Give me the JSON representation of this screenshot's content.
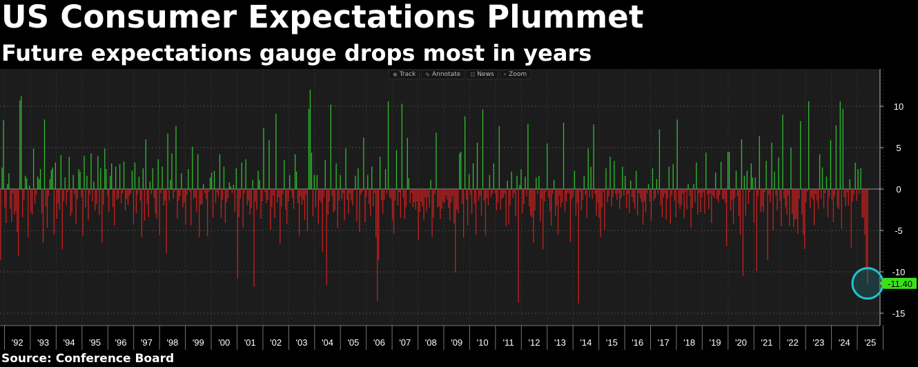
{
  "title": "US Consumer Expectations Plummet",
  "subtitle": "Future expectations gauge drops most in years",
  "source": "Source: Conference Board",
  "toolbar": {
    "items": [
      {
        "label": "Track",
        "icon": "crosshair-icon"
      },
      {
        "label": "Annotate",
        "icon": "pencil-icon"
      },
      {
        "label": "News",
        "icon": "news-icon"
      },
      {
        "label": "Zoom",
        "icon": "zoom-icon"
      }
    ]
  },
  "colors": {
    "positive": "#2fbf2f",
    "negative": "#cc1f1f",
    "background": "#1c1c1c",
    "highlight_circle": "#22c3cf",
    "last_value_label": "#39e21a"
  },
  "chart_data": {
    "type": "bar",
    "title": "US Consumer Expectations Plummet",
    "subtitle": "Future expectations gauge drops most in years",
    "xlabel": "",
    "ylabel": "",
    "ylim": [
      -16.5,
      14.5
    ],
    "yticks": [
      10,
      5,
      0,
      -5,
      -10,
      -15
    ],
    "x_tick_labels": [
      "'92",
      "'93",
      "'94",
      "'95",
      "'96",
      "'97",
      "'98",
      "'99",
      "'00",
      "'01",
      "'02",
      "'03",
      "'04",
      "'05",
      "'06",
      "'07",
      "'08",
      "'09",
      "'10",
      "'11",
      "'12",
      "'13",
      "'14",
      "'15",
      "'16",
      "'17",
      "'18",
      "'19",
      "'20",
      "'21",
      "'22",
      "'23",
      "'24",
      "'25"
    ],
    "x_start_year": 1991.8,
    "x_end_year": 2025.4,
    "grid": true,
    "last_value": -11.4,
    "last_value_label": "-11.40",
    "series": [
      {
        "name": "",
        "frequency": "monthly",
        "values": [
          -8.6,
          2.6,
          8.3,
          -2.2,
          -4.1,
          0.6,
          1.9,
          -2.4,
          -4.0,
          -0.5,
          -3.1,
          -2.7,
          -5.2,
          -8.1,
          10.7,
          11.2,
          -3.4,
          -1.3,
          1.6,
          1.3,
          -5.8,
          0.4,
          -2.8,
          -3.1,
          4.9,
          -1.8,
          -0.7,
          1.5,
          1.2,
          2.4,
          -2.9,
          -6.5,
          8.4,
          -2.1,
          -4.7,
          -0.9,
          1.2,
          2.3,
          2.6,
          -5.5,
          3.2,
          -3.6,
          -1.7,
          -2.5,
          4.1,
          -7.3,
          -1.5,
          1.4,
          -1.9,
          -0.4,
          3.9,
          -3.3,
          -2.8,
          1.7,
          -0.6,
          -4.2,
          -1.2,
          2.4,
          2.1,
          -1.0,
          -5.6,
          4.0,
          -2.2,
          1.6,
          -3.8,
          -0.7,
          4.3,
          -1.5,
          0.9,
          -2.6,
          -1.8,
          4.0,
          -3.1,
          2.5,
          -6.5,
          -1.9,
          4.9,
          2.4,
          -0.8,
          -2.7,
          1.6,
          3.1,
          -2.2,
          -4.4,
          2.7,
          -1.3,
          -1.1,
          3.0,
          -1.7,
          -0.5,
          3.3,
          -2.6,
          -1.2,
          -1.9,
          -0.8,
          -0.5,
          2.2,
          -4.2,
          3.2,
          -2.9,
          -0.6,
          1.5,
          -1.4,
          -5.8,
          2.5,
          -3.8,
          6.0,
          -1.8,
          -3.4,
          0.9,
          -0.6,
          2.5,
          -1.1,
          -2.9,
          -3.6,
          3.6,
          -5.6,
          -0.5,
          2.7,
          -2.0,
          -1.4,
          -7.8,
          6.7,
          -1.4,
          1.1,
          4.3,
          -1.2,
          -0.3,
          7.6,
          -3.6,
          -1.4,
          -0.9,
          1.9,
          -2.2,
          -1.6,
          -4.3,
          -0.7,
          2.4,
          -0.3,
          -4.4,
          5.1,
          -1.2,
          -1.0,
          -2.8,
          4.2,
          -5.8,
          -1.9,
          -1.8,
          0.6,
          -0.5,
          -1.2,
          -5.7,
          -0.3,
          1.4,
          2.0,
          -3.4,
          2.2,
          -1.7,
          -0.4,
          -0.9,
          4.2,
          -3.5,
          -1.3,
          2.7,
          -4.1,
          -1.6,
          -1.1,
          0.8,
          0.3,
          -0.5,
          0.5,
          -2.7,
          2.5,
          -10.8,
          -3.4,
          -1.2,
          3.2,
          -4.7,
          -0.5,
          3.6,
          -1.9,
          -1.4,
          -3.1,
          -2.3,
          1.1,
          -11.8,
          -1.5,
          -2.5,
          2.2,
          1.1,
          -3.6,
          -1.5,
          7.4,
          -0.4,
          -1.7,
          -1.3,
          5.9,
          -4.9,
          -2.2,
          -0.8,
          -3.5,
          9.1,
          -1.6,
          -1.0,
          -6.6,
          -2.1,
          -0.6,
          3.5,
          -2.5,
          -4.2,
          -1.5,
          1.7,
          -0.3,
          -1.1,
          -2.4,
          4.2,
          2.1,
          -1.7,
          -5.6,
          -0.9,
          -1.9,
          -1.3,
          -3.7,
          -0.7,
          -5.1,
          9.7,
          12.0,
          4.4,
          -3.3,
          1.7,
          -2.2,
          1.7,
          -4.2,
          -1.3,
          -1.7,
          -7.6,
          -1.0,
          3.5,
          -11.6,
          -3.1,
          -1.5,
          10.2,
          -0.8,
          -2.8,
          -2.6,
          3.1,
          -4.7,
          -1.4,
          1.7,
          -1.2,
          -0.5,
          -3.8,
          4.9,
          -1.3,
          -3.0,
          -0.5,
          -1.4,
          -2.0,
          -0.2,
          1.6,
          -3.9,
          2.5,
          -5.2,
          -0.7,
          -0.3,
          6.2,
          -4.0,
          -0.9,
          1.7,
          -1.8,
          -3.3,
          2.7,
          -2.1,
          -0.5,
          -5.8,
          -13.5,
          -8.6,
          3.9,
          -1.3,
          -3.0,
          -1.3,
          2.4,
          -0.6,
          10.6,
          -1.0,
          -1.2,
          -3.7,
          -5.4,
          -1.4,
          4.7,
          -2.0,
          -0.4,
          -3.5,
          10.3,
          -1.1,
          -3.6,
          -2.2,
          6.2,
          1.3,
          -1.7,
          -0.5,
          -2.2,
          -1.6,
          -2.5,
          -1.5,
          -6.1,
          -2.8,
          -1.5,
          -2.1,
          -3.7,
          -1.0,
          -2.7,
          -1.0,
          -2.2,
          1.1,
          -5.8,
          -3.5,
          -0.6,
          6.8,
          -2.2,
          -2.1,
          -3.6,
          -2.4,
          -1.5,
          -1.7,
          -0.8,
          -1.3,
          -2.3,
          -3.8,
          -1.6,
          -0.9,
          -4.2,
          -10.1,
          -2.5,
          -2.9,
          4.3,
          4.5,
          -1.8,
          -5.9,
          8.8,
          -1.3,
          -4.4,
          1.8,
          -0.7,
          -3.0,
          3.1,
          -1.8,
          -5.5,
          5.6,
          -1.4,
          -0.8,
          -3.2,
          9.6,
          -1.4,
          -5.6,
          -1.1,
          -2.0,
          1.7,
          -1.0,
          -0.6,
          3.1,
          -0.5,
          -2.6,
          -1.6,
          7.6,
          -2.5,
          -1.2,
          -1.0,
          -0.6,
          -4.5,
          1.0,
          -4.3,
          -1.9,
          2.1,
          -1.1,
          -0.5,
          -3.3,
          1.6,
          -13.7,
          0.5,
          2.4,
          -2.9,
          -1.8,
          1.5,
          -0.9,
          7.9,
          -2.1,
          -3.2,
          -3.4,
          -6.5,
          -2.6,
          1.4,
          -0.6,
          1.6,
          -3.9,
          -1.2,
          -7.3,
          -1.5,
          -0.4,
          5.5,
          -1.0,
          -2.7,
          -4.4,
          -0.6,
          1.1,
          -3.2,
          -2.0,
          -5.5,
          -0.8,
          -2.2,
          -1.6,
          8.0,
          -2.7,
          -1.5,
          -0.5,
          -0.5,
          -6.4,
          -1.3,
          -0.9,
          2.2,
          -3.2,
          -1.7,
          -13.8,
          -0.3,
          -2.6,
          -1.3,
          1.6,
          -0.7,
          -3.5,
          4.9,
          -1.0,
          2.7,
          -1.2,
          7.8,
          -0.6,
          -3.2,
          -1.7,
          -3.5,
          -5.8,
          -2.2,
          -0.3,
          -4.9,
          2.5,
          -1.6,
          -0.9,
          3.9,
          -2.1,
          -1.0,
          3.4,
          -0.6,
          -1.3,
          -0.5,
          -2.4,
          -1.1,
          2.7,
          -0.8,
          1.6,
          -2.3,
          -0.6,
          -2.9,
          1.0,
          -1.0,
          -1.6,
          -2.4,
          2.2,
          -3.2,
          -0.5,
          -1.1,
          -1.6,
          -4.3,
          -1.5,
          -2.8,
          -0.5,
          0.6,
          -1.5,
          -3.8,
          2.5,
          -1.4,
          -1.1,
          1.2,
          -0.6,
          7.2,
          -1.9,
          -3.4,
          -1.0,
          -0.6,
          -3.7,
          -1.2,
          2.7,
          -4.2,
          -0.8,
          3.0,
          -1.4,
          -3.4,
          8.4,
          -1.8,
          -2.4,
          -1.9,
          -0.5,
          -3.5,
          -0.3,
          -2.5,
          0.6,
          -0.8,
          -4.7,
          -2.3,
          0.6,
          -1.6,
          3.2,
          -3.1,
          -0.5,
          -2.8,
          -1.0,
          -0.4,
          -3.0,
          4.4,
          -0.7,
          -2.4,
          -0.5,
          -4.1,
          -0.8,
          -1.1,
          2.0,
          -1.2,
          -1.6,
          -0.7,
          3.3,
          -1.2,
          -1.2,
          -1.7,
          -6.9,
          4.5,
          4.5,
          -2.6,
          -1.3,
          -4.2,
          -1.1,
          2.2,
          -0.9,
          -3.3,
          -5.5,
          6.0,
          -10.5,
          1.6,
          -3.2,
          2.2,
          -1.8,
          -0.4,
          3.1,
          1.4,
          -4.1,
          1.4,
          -9.9,
          -0.9,
          6.4,
          -2.8,
          -2.1,
          -2.8,
          -0.4,
          3.4,
          -8.6,
          -0.7,
          -1.6,
          5.6,
          -5.0,
          2.1,
          -0.8,
          -2.6,
          3.8,
          -1.4,
          -4.5,
          9.0,
          -1.1,
          -2.2,
          -3.1,
          -0.8,
          -4.5,
          5.0,
          -3.0,
          -4.6,
          -3.7,
          -3.6,
          -5.4,
          -1.2,
          8.2,
          -3.1,
          -5.5,
          -7.2,
          -1.6,
          -0.3,
          10.6,
          -2.3,
          -1.0,
          -1.3,
          -4.4,
          -0.6,
          -1.4,
          -2.4,
          4.2,
          -1.2,
          2.6,
          -2.3,
          -0.5,
          1.5,
          -3.4,
          -1.0,
          5.9,
          -1.3,
          -4.0,
          -0.9,
          7.7,
          -2.2,
          -2.4,
          10.6,
          -4.8,
          9.7,
          -1.0,
          -2.1,
          -0.4,
          -2.0,
          1.2,
          -7.1,
          -1.5,
          -0.7,
          3.2,
          -1.4,
          2.4,
          -0.6,
          2.5,
          -3.4,
          -3.5,
          -5.5,
          -9.6,
          -11.4
        ]
      }
    ]
  }
}
